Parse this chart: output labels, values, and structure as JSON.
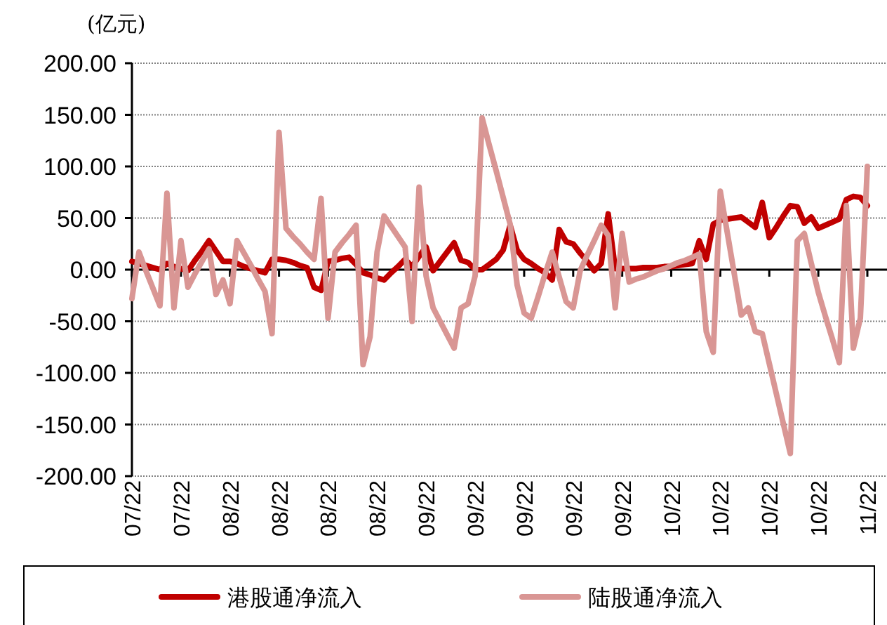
{
  "chart_data": {
    "type": "line",
    "ylabel": "(亿元)",
    "categories": [
      "07/22",
      null,
      null,
      null,
      null,
      null,
      null,
      "07/22",
      null,
      null,
      null,
      null,
      null,
      null,
      "08/22",
      null,
      null,
      null,
      null,
      null,
      null,
      "08/22",
      null,
      null,
      null,
      null,
      null,
      null,
      "08/22",
      null,
      null,
      null,
      null,
      null,
      null,
      "08/22",
      null,
      null,
      null,
      null,
      null,
      null,
      "09/22",
      null,
      null,
      null,
      null,
      null,
      null,
      "09/22",
      null,
      null,
      null,
      null,
      null,
      null,
      "09/22",
      null,
      null,
      null,
      null,
      null,
      null,
      "09/22",
      null,
      null,
      null,
      null,
      null,
      null,
      "09/22",
      null,
      null,
      null,
      null,
      null,
      null,
      "10/22",
      null,
      null,
      null,
      null,
      null,
      null,
      "10/22",
      null,
      null,
      null,
      null,
      null,
      null,
      "10/22",
      null,
      null,
      null,
      null,
      null,
      null,
      "10/22",
      null,
      null,
      null,
      null,
      null,
      null,
      "11/22"
    ],
    "series": [
      {
        "name": "港股通净流入",
        "color": "#c00000",
        "values": [
          8,
          6,
          4,
          2,
          0,
          6,
          3,
          1,
          -1,
          9,
          18,
          28,
          18,
          8,
          8,
          6,
          3,
          1,
          -1,
          -3,
          10,
          10,
          9,
          7,
          4,
          2,
          -17,
          -20,
          8,
          9,
          11,
          12,
          5,
          -3,
          -5,
          -8,
          -10,
          -3,
          3,
          10,
          3,
          13,
          22,
          -1,
          8,
          17,
          26,
          9,
          7,
          0,
          0,
          5,
          10,
          19,
          43,
          19,
          10,
          6,
          1,
          -3,
          -10,
          39,
          27,
          25,
          16,
          8,
          -1,
          6,
          54,
          1,
          1,
          1,
          1,
          2,
          2,
          2,
          3,
          3,
          4,
          5,
          6,
          28,
          10,
          44,
          48,
          49,
          50,
          51,
          46,
          41,
          65,
          31,
          41,
          52,
          62,
          61,
          45,
          51,
          40,
          43,
          46,
          49,
          68,
          71,
          70,
          62
        ]
      },
      {
        "name": "陆股通净流入",
        "color": "#d99694",
        "values": [
          -28,
          17,
          -1,
          -18,
          -35,
          74,
          -37,
          28,
          -17,
          -4,
          8,
          20,
          -24,
          -10,
          -33,
          28,
          16,
          4,
          -9,
          -21,
          -62,
          133,
          40,
          32,
          25,
          17,
          10,
          69,
          -47,
          17,
          26,
          34,
          43,
          -92,
          -65,
          17,
          52,
          42,
          32,
          22,
          -50,
          80,
          -6,
          -37,
          -50,
          -63,
          -76,
          -37,
          -33,
          -6,
          147,
          121,
          96,
          70,
          44,
          -15,
          -42,
          -47,
          -26,
          -4,
          17,
          -7,
          -31,
          -37,
          -1,
          14,
          28,
          43,
          33,
          -37,
          35,
          -12,
          -9,
          -7,
          -4,
          -1,
          1,
          4,
          7,
          9,
          12,
          15,
          -60,
          -80,
          76,
          36,
          -4,
          -44,
          -37,
          -60,
          -62,
          -91,
          -120,
          -149,
          -178,
          28,
          35,
          6,
          -22,
          -45,
          -67,
          -90,
          62,
          -76,
          -47,
          100
        ]
      }
    ],
    "ylim": [
      -200,
      200
    ],
    "yticks": [
      {
        "value": -200,
        "label": "-200.00"
      },
      {
        "value": -150,
        "label": "-150.00"
      },
      {
        "value": -100,
        "label": "-100.00"
      },
      {
        "value": -50,
        "label": "-50.00"
      },
      {
        "value": 0,
        "label": "0.00"
      },
      {
        "value": 50,
        "label": "50.00"
      },
      {
        "value": 100,
        "label": "100.00"
      },
      {
        "value": 150,
        "label": "150.00"
      },
      {
        "value": 200,
        "label": "200.00"
      }
    ],
    "grid": "y",
    "legend": "bottom",
    "line_style": "solid"
  }
}
